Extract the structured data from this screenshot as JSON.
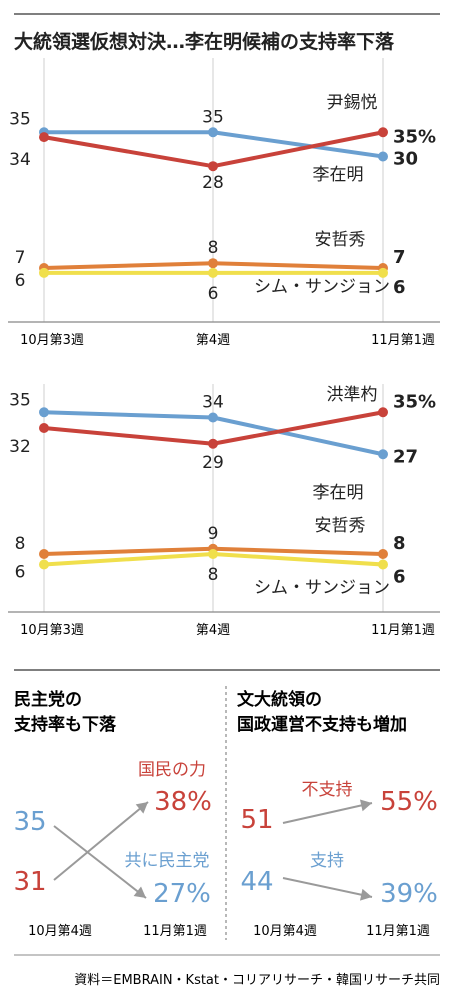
{
  "title": "大統領選仮想対決…李在明候補の支持率下落",
  "colors": {
    "red": "#c8423a",
    "blue": "#6a9fd0",
    "orange": "#e0803a",
    "yellow": "#f0df4c",
    "gray": "#9a9a9a",
    "text": "#222222"
  },
  "chart_data": [
    {
      "type": "line",
      "x": [
        "10月第3週",
        "第4週",
        "11月第1週"
      ],
      "ylim": [
        0,
        40
      ],
      "series": [
        {
          "name": "尹錫悦",
          "values": [
            35,
            35,
            30
          ],
          "color": "#6a9fd0",
          "labels": [
            "35",
            "35",
            "30"
          ]
        },
        {
          "name": "李在明",
          "values": [
            34,
            28,
            35
          ],
          "color": "#c8423a",
          "labels": [
            "34",
            "28",
            "35%"
          ]
        },
        {
          "name": "安哲秀",
          "values": [
            7,
            8,
            7
          ],
          "color": "#e0803a",
          "labels": [
            "7",
            "8",
            "7"
          ]
        },
        {
          "name": "シム・サンジョン",
          "values": [
            6,
            6,
            6
          ],
          "color": "#f0df4c",
          "labels": [
            "6",
            "6",
            "6"
          ]
        }
      ]
    },
    {
      "type": "line",
      "x": [
        "10月第3週",
        "第4週",
        "11月第1週"
      ],
      "ylim": [
        0,
        40
      ],
      "series": [
        {
          "name": "洪準杓",
          "values": [
            35,
            34,
            27
          ],
          "color": "#6a9fd0",
          "labels": [
            "35",
            "34",
            "27"
          ]
        },
        {
          "name": "李在明",
          "values": [
            32,
            29,
            35
          ],
          "color": "#c8423a",
          "labels": [
            "32",
            "29",
            "35%"
          ]
        },
        {
          "name": "安哲秀",
          "values": [
            8,
            9,
            8
          ],
          "color": "#e0803a",
          "labels": [
            "8",
            "9",
            "8"
          ]
        },
        {
          "name": "シム・サンジョン",
          "values": [
            6,
            8,
            6
          ],
          "color": "#f0df4c",
          "labels": [
            "6",
            "8",
            "6"
          ]
        }
      ]
    },
    {
      "type": "line",
      "title": "民主党の支持率も下落",
      "x": [
        "10月第4週",
        "11月第1週"
      ],
      "series": [
        {
          "name": "国民の力",
          "values": [
            31,
            38
          ],
          "color": "#c8423a",
          "labels": [
            "31",
            "38%"
          ]
        },
        {
          "name": "共に民主党",
          "values": [
            35,
            27
          ],
          "color": "#6a9fd0",
          "labels": [
            "35",
            "27%"
          ]
        }
      ]
    },
    {
      "type": "line",
      "title": "文大統領の国政運営不支持も増加",
      "x": [
        "10月第4週",
        "11月第1週"
      ],
      "series": [
        {
          "name": "不支持",
          "values": [
            51,
            55
          ],
          "color": "#c8423a",
          "labels": [
            "51",
            "55%"
          ]
        },
        {
          "name": "支持",
          "values": [
            44,
            39
          ],
          "color": "#6a9fd0",
          "labels": [
            "44",
            "39%"
          ]
        }
      ]
    }
  ],
  "bottom_left": {
    "title_line1": "民主党の",
    "title_line2": "支持率も下落"
  },
  "bottom_right": {
    "title_line1": "文大統領の",
    "title_line2": "国政運営不支持も増加"
  },
  "source": "資料＝EMBRAIN・Kstat・コリアリサーチ・韓国リサーチ共同"
}
